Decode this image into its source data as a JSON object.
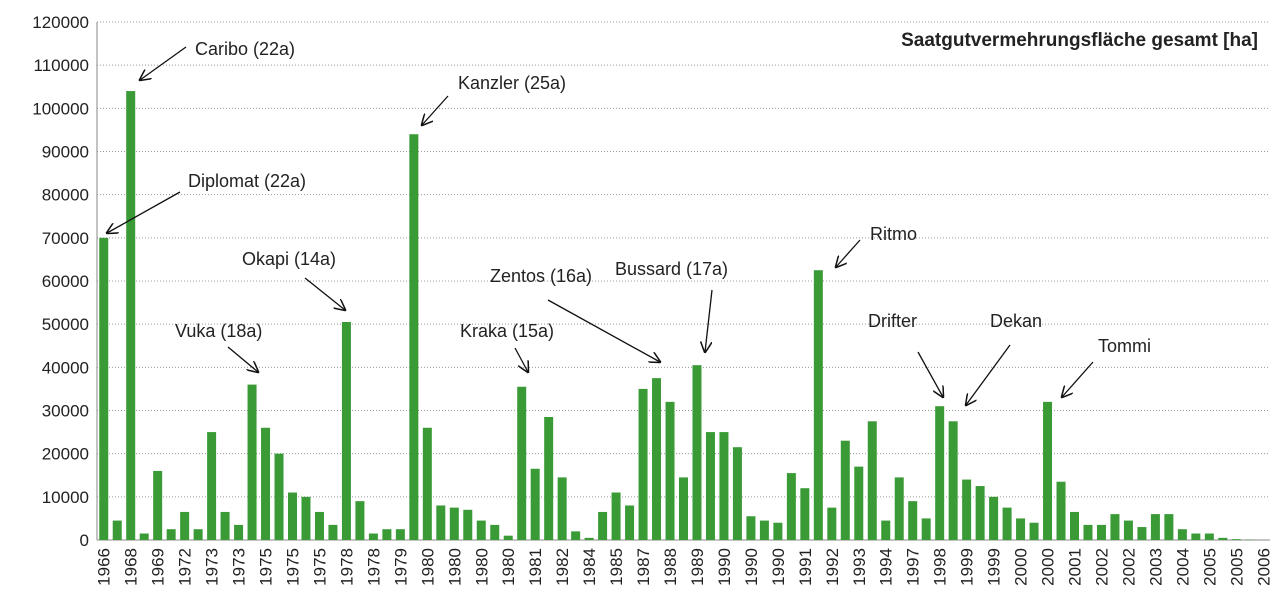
{
  "chart_data": {
    "type": "bar",
    "title": "Saatgutvermehrungsfläche gesamt [ha]",
    "color": "#3a9a36",
    "grid": true,
    "ylim": [
      0,
      120000
    ],
    "yticks": [
      0,
      10000,
      20000,
      30000,
      40000,
      50000,
      60000,
      70000,
      80000,
      90000,
      100000,
      110000,
      120000
    ],
    "categories": [
      "1966",
      null,
      "1968",
      null,
      "1969",
      null,
      "1972",
      null,
      "1973",
      null,
      "1973",
      null,
      "1975",
      null,
      "1975",
      null,
      "1975",
      null,
      "1978",
      null,
      "1978",
      null,
      "1979",
      null,
      "1980",
      null,
      "1980",
      null,
      "1980",
      null,
      "1980",
      null,
      "1981",
      null,
      "1982",
      null,
      "1984",
      null,
      "1985",
      null,
      "1987",
      null,
      "1988",
      null,
      "1989",
      null,
      "1990",
      null,
      "1990",
      null,
      "1990",
      null,
      "1991",
      null,
      "1992",
      null,
      "1993",
      null,
      "1994",
      null,
      "1997",
      null,
      "1998",
      null,
      "1999",
      null,
      "1999",
      null,
      "2000",
      null,
      "2000",
      null,
      "2001",
      null,
      "2002",
      null,
      "2002",
      null,
      "2003",
      null,
      "2004",
      null,
      "2005",
      null,
      "2005",
      null,
      "2006"
    ],
    "values": [
      70000,
      4500,
      104000,
      1500,
      16000,
      2500,
      6500,
      2500,
      25000,
      6500,
      3500,
      36000,
      26000,
      20000,
      11000,
      10000,
      6500,
      3500,
      50500,
      9000,
      1500,
      2500,
      2500,
      94000,
      26000,
      8000,
      7500,
      7000,
      4500,
      3500,
      1000,
      35500,
      16500,
      28500,
      14500,
      2000,
      500,
      6500,
      11000,
      8000,
      35000,
      37500,
      32000,
      14500,
      40500,
      25000,
      25000,
      21500,
      5500,
      4500,
      4000,
      15500,
      12000,
      62500,
      7500,
      23000,
      17000,
      27500,
      4500,
      14500,
      9000,
      5000,
      31000,
      27500,
      14000,
      12500,
      10000,
      7500,
      5000,
      4000,
      32000,
      13500,
      6500,
      3500,
      3500,
      6000,
      4500,
      3000,
      6000,
      6000,
      2500,
      1500,
      1500,
      500,
      200,
      100,
      0
    ],
    "annotations": [
      "Caribo (22a)",
      "Diplomat (22a)",
      "Kanzler (25a)",
      "Okapi (14a)",
      "Vuka (18a)",
      "Kraka (15a)",
      "Zentos (16a)",
      "Bussard (17a)",
      "Ritmo",
      "Drifter",
      "Dekan",
      "Tommi"
    ]
  }
}
